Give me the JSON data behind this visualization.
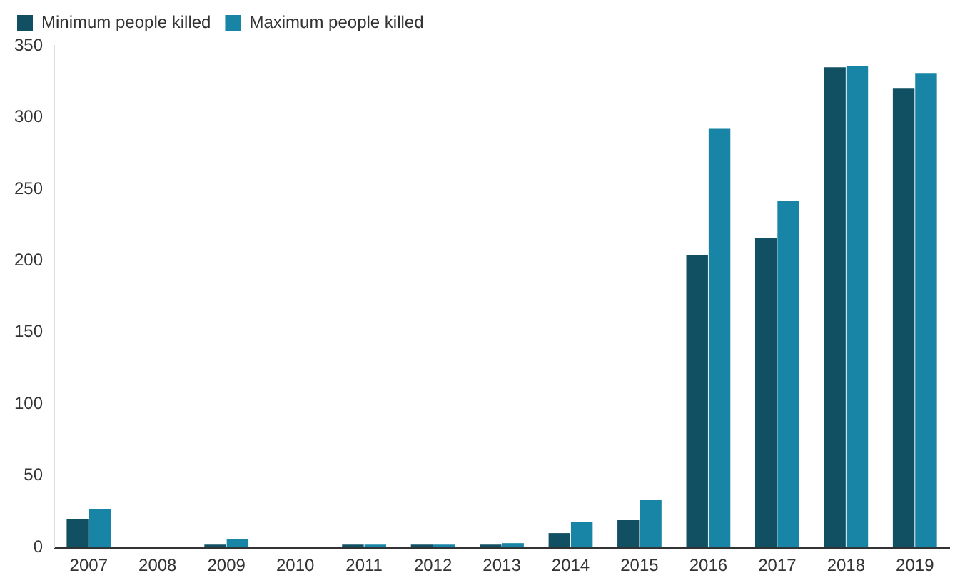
{
  "chart_data": {
    "type": "bar",
    "categories": [
      "2007",
      "2008",
      "2009",
      "2010",
      "2011",
      "2012",
      "2013",
      "2014",
      "2015",
      "2016",
      "2017",
      "2018",
      "2019"
    ],
    "series": [
      {
        "name": "Minimum people killed",
        "color": "#114f62",
        "values": [
          20,
          0,
          2,
          0,
          2,
          2,
          2,
          10,
          19,
          204,
          216,
          335,
          320
        ]
      },
      {
        "name": "Maximum people killed",
        "color": "#1985a6",
        "values": [
          27,
          0,
          6,
          0,
          2,
          2,
          3,
          18,
          33,
          292,
          242,
          336,
          331
        ]
      }
    ],
    "ylim": [
      0,
      350
    ],
    "yticks": [
      0,
      50,
      100,
      150,
      200,
      250,
      300,
      350
    ],
    "grid": false,
    "legend": "top left"
  }
}
